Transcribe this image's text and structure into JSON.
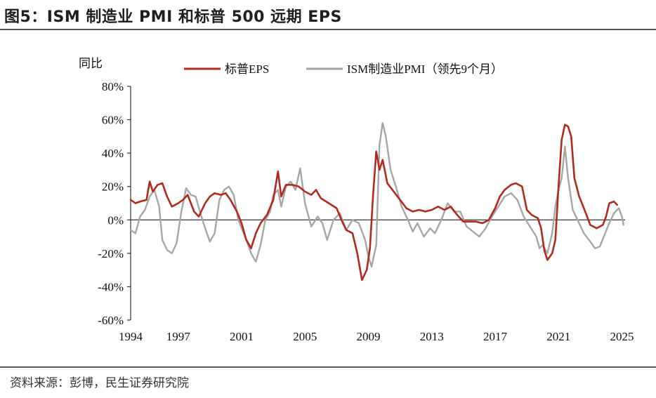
{
  "title": "图5：ISM 制造业 PMI 和标普 500 远期 EPS",
  "source": "资料来源：彭博，民生证券研究院",
  "colors": {
    "eps": "#b22a1f",
    "pmi": "#a6a6a6",
    "axis": "#333333",
    "rule": "#555555"
  },
  "chart_data": {
    "type": "line",
    "ylabel": "同比",
    "ylim": [
      -0.6,
      0.8
    ],
    "yticks": [
      -0.6,
      -0.4,
      -0.2,
      0,
      0.2,
      0.4,
      0.6,
      0.8
    ],
    "ytick_labels": [
      "-60%",
      "-40%",
      "-20%",
      "0%",
      "20%",
      "40%",
      "60%",
      "80%"
    ],
    "xlim": [
      1994,
      2025.2
    ],
    "xticks": [
      1994,
      1997,
      2001,
      2005,
      2009,
      2013,
      2017,
      2021,
      2025
    ],
    "xtick_labels": [
      "1994",
      "1997",
      "2001",
      "2005",
      "2009",
      "2013",
      "2017",
      "2021",
      "2025"
    ],
    "legend_position": "top",
    "grid": false,
    "series": [
      {
        "name": "标普EPS",
        "color": "#b22a1f",
        "points": [
          [
            1994.0,
            0.12
          ],
          [
            1994.3,
            0.1
          ],
          [
            1994.6,
            0.11
          ],
          [
            1995.0,
            0.12
          ],
          [
            1995.2,
            0.23
          ],
          [
            1995.4,
            0.17
          ],
          [
            1995.7,
            0.21
          ],
          [
            1996.0,
            0.22
          ],
          [
            1996.3,
            0.14
          ],
          [
            1996.6,
            0.08
          ],
          [
            1997.0,
            0.1
          ],
          [
            1997.3,
            0.12
          ],
          [
            1997.6,
            0.15
          ],
          [
            1998.0,
            0.05
          ],
          [
            1998.3,
            0.02
          ],
          [
            1998.7,
            0.1
          ],
          [
            1999.0,
            0.14
          ],
          [
            1999.3,
            0.16
          ],
          [
            1999.7,
            0.15
          ],
          [
            2000.0,
            0.16
          ],
          [
            2000.3,
            0.12
          ],
          [
            2000.7,
            0.05
          ],
          [
            2001.0,
            -0.02
          ],
          [
            2001.3,
            -0.12
          ],
          [
            2001.6,
            -0.17
          ],
          [
            2001.9,
            -0.08
          ],
          [
            2002.2,
            -0.02
          ],
          [
            2002.6,
            0.03
          ],
          [
            2003.0,
            0.12
          ],
          [
            2003.3,
            0.29
          ],
          [
            2003.5,
            0.14
          ],
          [
            2003.8,
            0.21
          ],
          [
            2004.2,
            0.21
          ],
          [
            2004.6,
            0.2
          ],
          [
            2005.0,
            0.17
          ],
          [
            2005.4,
            0.15
          ],
          [
            2005.7,
            0.18
          ],
          [
            2006.0,
            0.13
          ],
          [
            2006.5,
            0.1
          ],
          [
            2007.0,
            0.07
          ],
          [
            2007.3,
            0.0
          ],
          [
            2007.6,
            -0.06
          ],
          [
            2008.0,
            -0.08
          ],
          [
            2008.3,
            -0.2
          ],
          [
            2008.6,
            -0.36
          ],
          [
            2008.9,
            -0.3
          ],
          [
            2009.1,
            -0.17
          ],
          [
            2009.3,
            0.15
          ],
          [
            2009.5,
            0.41
          ],
          [
            2009.7,
            0.3
          ],
          [
            2009.9,
            0.36
          ],
          [
            2010.2,
            0.22
          ],
          [
            2010.6,
            0.17
          ],
          [
            2011.0,
            0.12
          ],
          [
            2011.4,
            0.07
          ],
          [
            2011.8,
            0.05
          ],
          [
            2012.2,
            0.06
          ],
          [
            2012.6,
            0.05
          ],
          [
            2013.0,
            0.06
          ],
          [
            2013.4,
            0.08
          ],
          [
            2013.8,
            0.06
          ],
          [
            2014.2,
            0.08
          ],
          [
            2014.6,
            0.03
          ],
          [
            2015.0,
            -0.01
          ],
          [
            2015.4,
            -0.01
          ],
          [
            2015.8,
            -0.01
          ],
          [
            2016.2,
            -0.02
          ],
          [
            2016.6,
            0.0
          ],
          [
            2017.0,
            0.07
          ],
          [
            2017.3,
            0.14
          ],
          [
            2017.6,
            0.18
          ],
          [
            2018.0,
            0.21
          ],
          [
            2018.3,
            0.22
          ],
          [
            2018.7,
            0.2
          ],
          [
            2019.0,
            0.06
          ],
          [
            2019.3,
            0.03
          ],
          [
            2019.7,
            0.01
          ],
          [
            2019.9,
            -0.05
          ],
          [
            2020.1,
            -0.18
          ],
          [
            2020.3,
            -0.24
          ],
          [
            2020.6,
            -0.2
          ],
          [
            2020.8,
            -0.12
          ],
          [
            2021.0,
            0.2
          ],
          [
            2021.2,
            0.48
          ],
          [
            2021.4,
            0.57
          ],
          [
            2021.6,
            0.56
          ],
          [
            2021.8,
            0.5
          ],
          [
            2022.0,
            0.25
          ],
          [
            2022.3,
            0.14
          ],
          [
            2022.6,
            0.07
          ],
          [
            2023.0,
            -0.03
          ],
          [
            2023.4,
            -0.05
          ],
          [
            2023.8,
            -0.03
          ],
          [
            2024.0,
            0.02
          ],
          [
            2024.2,
            0.1
          ],
          [
            2024.5,
            0.11
          ],
          [
            2024.7,
            0.09
          ]
        ]
      },
      {
        "name": "ISM制造业PMI（领先9个月）",
        "color": "#a6a6a6",
        "points": [
          [
            1994.0,
            -0.06
          ],
          [
            1994.3,
            -0.08
          ],
          [
            1994.6,
            0.02
          ],
          [
            1994.9,
            0.06
          ],
          [
            1995.2,
            0.14
          ],
          [
            1995.5,
            0.18
          ],
          [
            1995.8,
            0.08
          ],
          [
            1996.0,
            -0.12
          ],
          [
            1996.3,
            -0.18
          ],
          [
            1996.6,
            -0.2
          ],
          [
            1996.9,
            -0.14
          ],
          [
            1997.2,
            0.05
          ],
          [
            1997.5,
            0.19
          ],
          [
            1997.8,
            0.15
          ],
          [
            1998.1,
            0.14
          ],
          [
            1998.4,
            0.04
          ],
          [
            1998.7,
            -0.05
          ],
          [
            1999.0,
            -0.13
          ],
          [
            1999.3,
            -0.08
          ],
          [
            1999.6,
            0.12
          ],
          [
            1999.9,
            0.18
          ],
          [
            2000.2,
            0.2
          ],
          [
            2000.5,
            0.15
          ],
          [
            2000.8,
            0.0
          ],
          [
            2001.0,
            -0.05
          ],
          [
            2001.3,
            -0.12
          ],
          [
            2001.6,
            -0.2
          ],
          [
            2001.9,
            -0.25
          ],
          [
            2002.2,
            -0.15
          ],
          [
            2002.5,
            0.0
          ],
          [
            2002.8,
            0.05
          ],
          [
            2003.0,
            0.15
          ],
          [
            2003.3,
            0.18
          ],
          [
            2003.5,
            0.08
          ],
          [
            2003.8,
            0.2
          ],
          [
            2004.1,
            0.23
          ],
          [
            2004.4,
            0.18
          ],
          [
            2004.7,
            0.31
          ],
          [
            2005.0,
            0.1
          ],
          [
            2005.4,
            -0.04
          ],
          [
            2005.8,
            0.02
          ],
          [
            2006.1,
            -0.02
          ],
          [
            2006.4,
            -0.12
          ],
          [
            2006.8,
            0.0
          ],
          [
            2007.2,
            0.04
          ],
          [
            2007.6,
            -0.06
          ],
          [
            2008.0,
            0.0
          ],
          [
            2008.4,
            -0.02
          ],
          [
            2008.8,
            -0.12
          ],
          [
            2009.0,
            -0.22
          ],
          [
            2009.2,
            -0.28
          ],
          [
            2009.5,
            -0.15
          ],
          [
            2009.7,
            0.45
          ],
          [
            2009.9,
            0.58
          ],
          [
            2010.1,
            0.5
          ],
          [
            2010.4,
            0.3
          ],
          [
            2010.8,
            0.18
          ],
          [
            2011.1,
            0.08
          ],
          [
            2011.5,
            0.0
          ],
          [
            2011.8,
            -0.07
          ],
          [
            2012.1,
            -0.02
          ],
          [
            2012.5,
            -0.1
          ],
          [
            2012.9,
            -0.05
          ],
          [
            2013.2,
            -0.08
          ],
          [
            2013.6,
            0.0
          ],
          [
            2014.0,
            0.1
          ],
          [
            2014.4,
            0.05
          ],
          [
            2014.8,
            0.05
          ],
          [
            2015.2,
            -0.04
          ],
          [
            2015.6,
            -0.07
          ],
          [
            2016.0,
            -0.1
          ],
          [
            2016.4,
            -0.05
          ],
          [
            2016.8,
            0.02
          ],
          [
            2017.2,
            0.08
          ],
          [
            2017.6,
            0.14
          ],
          [
            2018.0,
            0.16
          ],
          [
            2018.4,
            0.12
          ],
          [
            2018.8,
            0.02
          ],
          [
            2019.2,
            -0.04
          ],
          [
            2019.6,
            -0.1
          ],
          [
            2019.8,
            -0.17
          ],
          [
            2020.0,
            -0.15
          ],
          [
            2020.3,
            -0.2
          ],
          [
            2020.6,
            -0.08
          ],
          [
            2020.8,
            0.08
          ],
          [
            2021.0,
            0.18
          ],
          [
            2021.2,
            0.25
          ],
          [
            2021.4,
            0.44
          ],
          [
            2021.6,
            0.25
          ],
          [
            2021.9,
            0.06
          ],
          [
            2022.2,
            0.0
          ],
          [
            2022.6,
            -0.08
          ],
          [
            2023.0,
            -0.13
          ],
          [
            2023.3,
            -0.17
          ],
          [
            2023.6,
            -0.16
          ],
          [
            2023.9,
            -0.09
          ],
          [
            2024.2,
            -0.02
          ],
          [
            2024.5,
            0.04
          ],
          [
            2024.8,
            0.07
          ],
          [
            2025.0,
            0.02
          ],
          [
            2025.1,
            -0.03
          ]
        ]
      }
    ]
  }
}
